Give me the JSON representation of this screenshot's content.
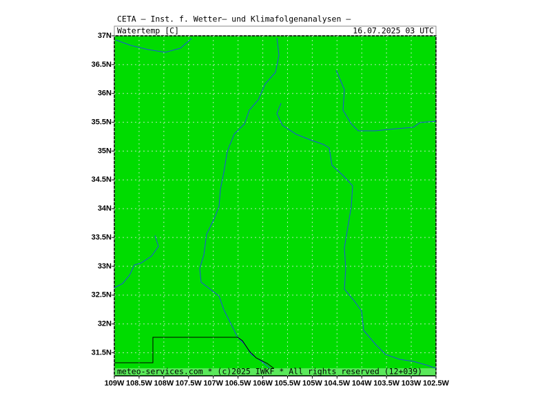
{
  "header": {
    "title": "CETA — Inst. f. Wetter— und Klimafolgenanalysen —",
    "variable": "Watertemp [C]",
    "datetime": "16.07.2025 03 UTC"
  },
  "map": {
    "lon_range": [
      -109,
      -102.5
    ],
    "lat_range": [
      31.1,
      37
    ],
    "xticks": [
      {
        "value": -109,
        "label": "109W"
      },
      {
        "value": -108.5,
        "label": "108.5W"
      },
      {
        "value": -108,
        "label": "108W"
      },
      {
        "value": -107.5,
        "label": "107.5W"
      },
      {
        "value": -107,
        "label": "107W"
      },
      {
        "value": -106.5,
        "label": "106.5W"
      },
      {
        "value": -106,
        "label": "106W"
      },
      {
        "value": -105.5,
        "label": "105.5W"
      },
      {
        "value": -105,
        "label": "105W"
      },
      {
        "value": -104.5,
        "label": "104.5W"
      },
      {
        "value": -104,
        "label": "104W"
      },
      {
        "value": -103.5,
        "label": "103.5W"
      },
      {
        "value": -103,
        "label": "103W"
      },
      {
        "value": -102.5,
        "label": "102.5W"
      }
    ],
    "yticks": [
      {
        "value": 37,
        "label": "37N"
      },
      {
        "value": 36.5,
        "label": "36.5N"
      },
      {
        "value": 36,
        "label": "36N"
      },
      {
        "value": 35.5,
        "label": "35.5N"
      },
      {
        "value": 35,
        "label": "35N"
      },
      {
        "value": 34.5,
        "label": "34.5N"
      },
      {
        "value": 34,
        "label": "34N"
      },
      {
        "value": 33.5,
        "label": "33.5N"
      },
      {
        "value": 33,
        "label": "33N"
      },
      {
        "value": 32.5,
        "label": "32.5N"
      },
      {
        "value": 32,
        "label": "32N"
      },
      {
        "value": 31.5,
        "label": "31.5N"
      }
    ],
    "fill_color": "#00dc00"
  },
  "footer": "meteo-services.com * (c)2025 IWKF * All rights reserved (12+039)"
}
